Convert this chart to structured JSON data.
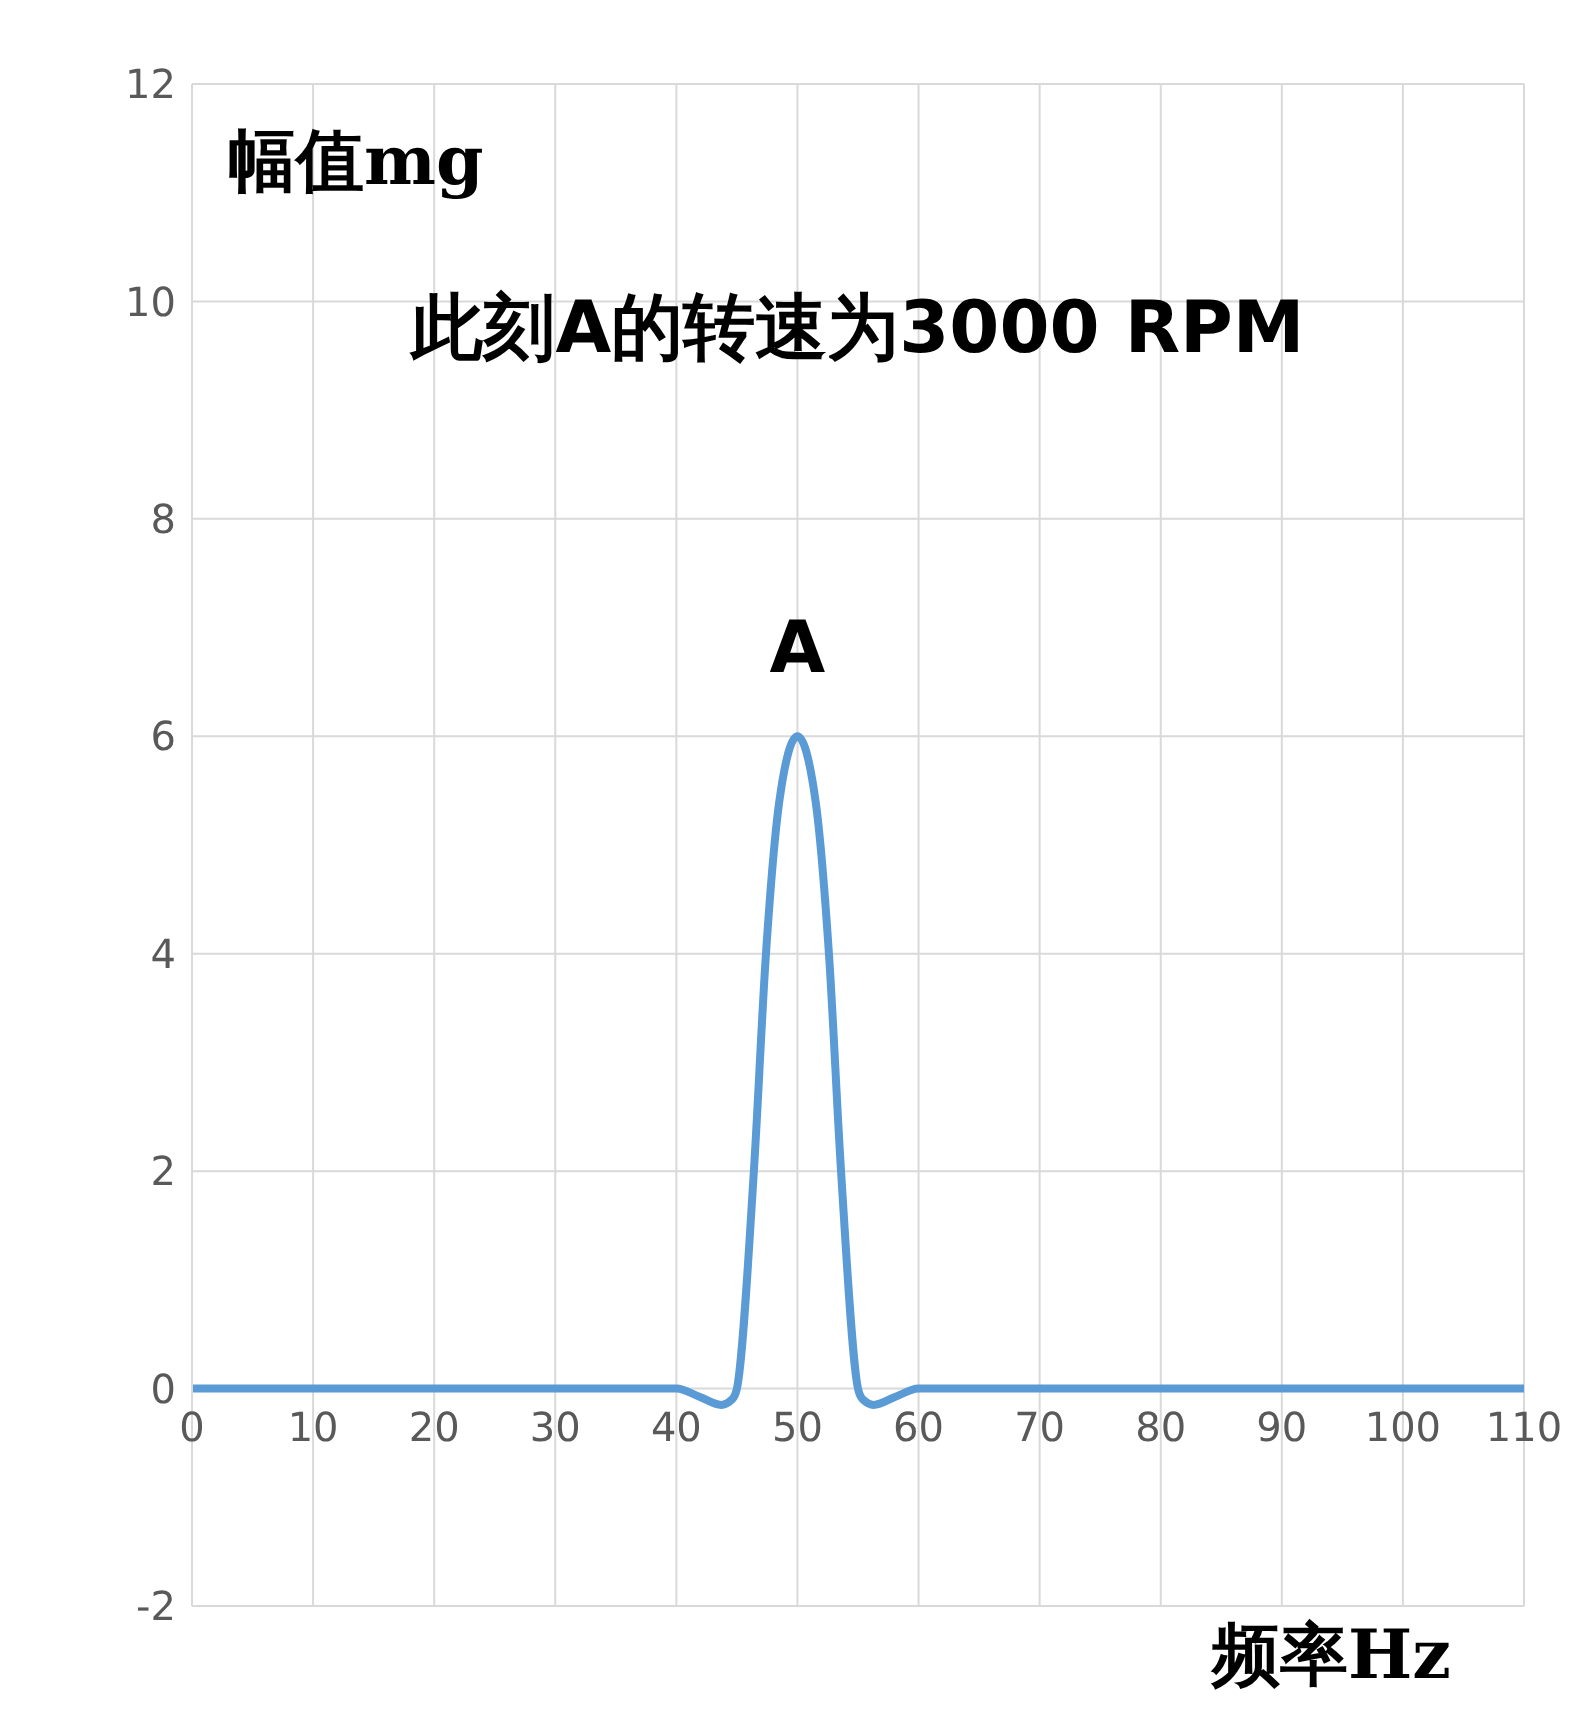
{
  "chart_data": {
    "type": "line",
    "title": "此刻A的转速为3000 RPM",
    "xlabel": "频率Hz",
    "ylabel": "幅值mg",
    "x": [
      0,
      40,
      42,
      43.7,
      44.6,
      45,
      46.4,
      47.4,
      48.5,
      50,
      51.5,
      52.6,
      53.6,
      55,
      55.4,
      56.3,
      58,
      60,
      110
    ],
    "series": [
      {
        "color": "#5b9bd5",
        "values": [
          0,
          0,
          -0.08,
          -0.15,
          -0.1,
          0,
          2,
          4,
          5.4,
          6,
          5.4,
          4,
          2,
          0,
          -0.1,
          -0.15,
          -0.08,
          0,
          0
        ]
      }
    ],
    "annotations": [
      {
        "text": "A",
        "x": 50,
        "y": 6
      }
    ],
    "xlim": [
      0,
      110
    ],
    "xticks": [
      0,
      10,
      20,
      30,
      40,
      50,
      60,
      70,
      80,
      90,
      100,
      110
    ],
    "ylim": [
      -2,
      12
    ],
    "yticks": [
      -2,
      0,
      2,
      4,
      6,
      8,
      10,
      12
    ],
    "grid": true,
    "legend": false,
    "marker": "none",
    "line_style": "solid"
  }
}
